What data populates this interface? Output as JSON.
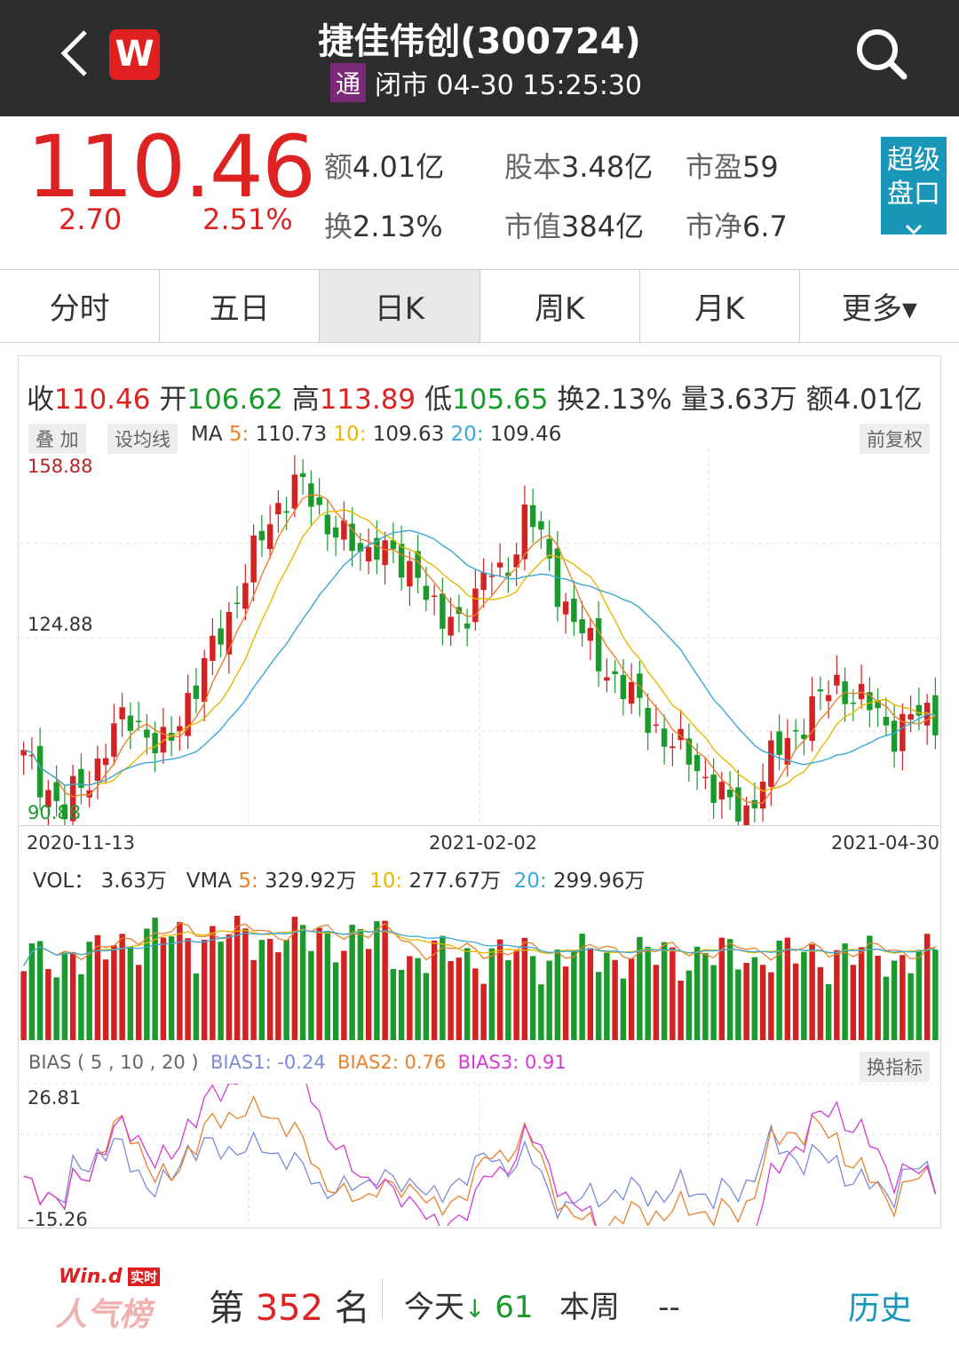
{
  "header": {
    "title": "捷佳伟创(300724)",
    "tong_badge": "通",
    "status": "闭市 04-30 15:25:30",
    "wind_logo": "W"
  },
  "quote": {
    "price": "110.46",
    "change": "2.70",
    "change_pct": "2.51%",
    "amount_label": "额",
    "amount": "4.01亿",
    "turnover_label": "换",
    "turnover": "2.13%",
    "share_label": "股本",
    "share": "3.48亿",
    "mcap_label": "市值",
    "mcap": "384亿",
    "pe_label": "市盈",
    "pe": "59",
    "pb_label": "市净",
    "pb": "6.7",
    "super_button": "超级盘口"
  },
  "tabs": [
    "分时",
    "五日",
    "日K",
    "周K",
    "月K",
    "更多▾"
  ],
  "active_tab": "日K",
  "ohlc": {
    "close_label": "收",
    "close": "110.46",
    "open_label": "开",
    "open": "106.62",
    "high_label": "高",
    "high": "113.89",
    "low_label": "低",
    "low": "105.65",
    "turn_label": "换",
    "turn": "2.13%",
    "vol_label": "量",
    "vol": "3.63万",
    "amt_label": "额",
    "amt": "4.01亿"
  },
  "kline": {
    "overlay_button": "叠 加",
    "set_ma_button": "设均线",
    "ma_prefix": "MA",
    "ma5_label": "5",
    "ma5": "110.73",
    "ma10_label": "10",
    "ma10": "109.63",
    "ma20_label": "20",
    "ma20": "109.46",
    "adjust_button": "前复权",
    "y_top": "158.88",
    "y_mid": "124.88",
    "y_bottom": "90.88",
    "dates": [
      "2020-11-13",
      "2021-02-02",
      "2021-04-30"
    ]
  },
  "volume": {
    "vol_label": "VOL：",
    "vol": "3.63万",
    "vma_prefix": "VMA",
    "vma5_label": "5",
    "vma5": "329.92万",
    "vma10_label": "10",
    "vma10": "277.67万",
    "vma20_label": "20",
    "vma20": "299.96万"
  },
  "bias": {
    "title": "BIAS ( 5 , 10 , 20 )",
    "bias1": "BIAS1: -0.24",
    "bias2": "BIAS2: 0.76",
    "bias3": "BIAS3: 0.91",
    "switch_button": "换指标",
    "y_top": "26.81",
    "y_bottom": "-15.26"
  },
  "footer": {
    "logo_top": "Win.d",
    "logo_badge": "实时",
    "logo_bottom": "人气榜",
    "rank_prefix": "第",
    "rank": "352",
    "rank_suffix": "名",
    "today_label": "今天",
    "today_arrow": "↓",
    "today_value": "61",
    "week_label": "本周",
    "week_value": "--",
    "history_button": "历史"
  },
  "colors": {
    "up": "#d22222",
    "down": "#199a2b",
    "ma5": "#e8812b",
    "ma10": "#e6b800",
    "ma20": "#3aa7d8",
    "accent": "#1a97b8"
  },
  "chart_data": {
    "type": "candlestick",
    "x_range": [
      "2020-11-13",
      "2021-04-30"
    ],
    "ylim": [
      90.88,
      158.88
    ],
    "close_series_approx": [
      103,
      100,
      97,
      93,
      98,
      100,
      105,
      109,
      111,
      108,
      104,
      107,
      114,
      118,
      123,
      128,
      135,
      140,
      145,
      150,
      153,
      150,
      146,
      145,
      141,
      139,
      143,
      140,
      135,
      138,
      131,
      126,
      128,
      132,
      137,
      135,
      140,
      149,
      142,
      135,
      130,
      126,
      121,
      119,
      116,
      113,
      110,
      107,
      105,
      103,
      100,
      97,
      94,
      93,
      98,
      103,
      106,
      109,
      112,
      115,
      117,
      114,
      113,
      110,
      108,
      110,
      111,
      110.46
    ]
  }
}
